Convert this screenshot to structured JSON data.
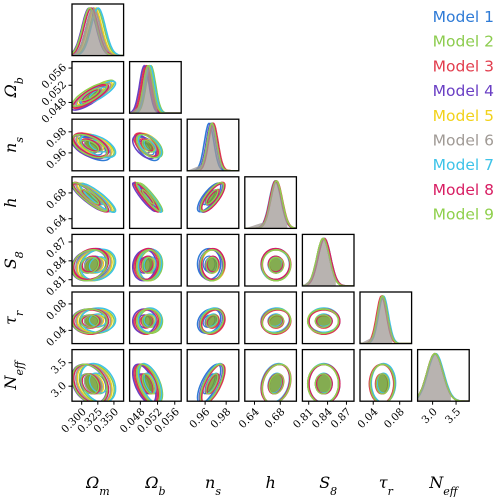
{
  "chart_data": {
    "type": "scatter",
    "subtype": "corner-plot",
    "parameters": [
      {
        "key": "omega_m",
        "symbol": "Ω",
        "sub": "m",
        "sup": "",
        "ticks": [
          "0.300",
          "0.325",
          "0.350"
        ],
        "tick_values": [
          0.3,
          0.325,
          0.35
        ],
        "range": [
          0.285,
          0.365
        ],
        "mean": 0.318,
        "sigma": 0.011
      },
      {
        "key": "omega_b",
        "symbol": "Ω",
        "sub": "b",
        "sup": "",
        "ticks": [
          "0.048",
          "0.052",
          "0.056"
        ],
        "tick_values": [
          0.048,
          0.052,
          0.056
        ],
        "range": [
          0.0455,
          0.0575
        ],
        "mean": 0.0498,
        "sigma": 0.0011
      },
      {
        "key": "n_s",
        "symbol": "n",
        "sub": "s",
        "sup": "",
        "ticks": [
          "0.96",
          "0.98"
        ],
        "tick_values": [
          0.96,
          0.98
        ],
        "range": [
          0.943,
          0.992
        ],
        "mean": 0.9665,
        "sigma": 0.0045
      },
      {
        "key": "h",
        "symbol": "h",
        "sub": "",
        "sup": "",
        "ticks": [
          "0.64",
          "0.68"
        ],
        "tick_values": [
          0.64,
          0.68
        ],
        "range": [
          0.625,
          0.705
        ],
        "mean": 0.673,
        "sigma": 0.009
      },
      {
        "key": "S_8",
        "symbol": "S",
        "sub": "8",
        "sup": "",
        "ticks": [
          "0.81",
          "0.84",
          "0.87"
        ],
        "tick_values": [
          0.81,
          0.84,
          0.87
        ],
        "range": [
          0.8,
          0.882
        ],
        "mean": 0.833,
        "sigma": 0.01
      },
      {
        "key": "tau_r",
        "symbol": "τ",
        "sub": "r",
        "sup": "",
        "ticks": [
          "0.04",
          "0.08"
        ],
        "tick_values": [
          0.04,
          0.08
        ],
        "range": [
          0.02,
          0.098
        ],
        "mean": 0.054,
        "sigma": 0.0075
      },
      {
        "key": "N_eff",
        "symbol": "N",
        "sub": "eff",
        "sup": "",
        "ticks": [
          "3.0",
          "3.5"
        ],
        "tick_values": [
          3.0,
          3.5
        ],
        "range": [
          2.68,
          3.78
        ],
        "mean": 3.05,
        "sigma": 0.17
      }
    ],
    "series": [
      {
        "name": "Model 1",
        "color": "#2f7bd6"
      },
      {
        "name": "Model 2",
        "color": "#8ccc4e"
      },
      {
        "name": "Model 3",
        "color": "#e23d4d"
      },
      {
        "name": "Model 4",
        "color": "#6a3fc4"
      },
      {
        "name": "Model 5",
        "color": "#f2d21b"
      },
      {
        "name": "Model 6",
        "color": "#a09a95"
      },
      {
        "name": "Model 7",
        "color": "#3ec3e8"
      },
      {
        "name": "Model 8",
        "color": "#d81e63"
      },
      {
        "name": "Model 9",
        "color": "#8fd04c"
      }
    ],
    "mean_shifts": [
      [
        0.0,
        0.0,
        -0.6,
        0.0,
        0.2,
        0.0,
        0.0
      ],
      [
        0.5,
        0.6,
        0.0,
        0.0,
        0.0,
        0.0,
        0.0
      ],
      [
        -0.4,
        -0.5,
        0.3,
        0.15,
        0.1,
        -0.2,
        0.0
      ],
      [
        -0.6,
        -0.8,
        -0.2,
        0.05,
        0.0,
        0.0,
        0.0
      ],
      [
        0.2,
        0.3,
        0.2,
        0.0,
        0.0,
        0.1,
        0.0
      ],
      [
        0.0,
        0.0,
        0.0,
        0.0,
        0.0,
        0.0,
        0.0
      ],
      [
        0.7,
        0.4,
        0.0,
        -0.1,
        0.1,
        0.2,
        0.1
      ],
      [
        -0.3,
        -0.2,
        0.2,
        -0.05,
        0.2,
        0.0,
        0.0
      ],
      [
        -0.5,
        0.0,
        0.0,
        0.1,
        0.0,
        0.0,
        0.0
      ]
    ],
    "correlations": [
      [
        "omega_b",
        "omega_m",
        0.82
      ],
      [
        "n_s",
        "omega_m",
        -0.55
      ],
      [
        "n_s",
        "omega_b",
        -0.55
      ],
      [
        "h",
        "omega_m",
        -0.88
      ],
      [
        "h",
        "omega_b",
        -0.93
      ],
      [
        "h",
        "n_s",
        0.78
      ],
      [
        "S_8",
        "omega_m",
        0.2
      ],
      [
        "S_8",
        "omega_b",
        0.1
      ],
      [
        "S_8",
        "n_s",
        0.0
      ],
      [
        "S_8",
        "h",
        0.0
      ],
      [
        "tau_r",
        "omega_m",
        0.0
      ],
      [
        "tau_r",
        "omega_b",
        0.0
      ],
      [
        "tau_r",
        "n_s",
        0.25
      ],
      [
        "tau_r",
        "h",
        0.1
      ],
      [
        "tau_r",
        "S_8",
        0.0
      ],
      [
        "N_eff",
        "omega_m",
        -0.3
      ],
      [
        "N_eff",
        "omega_b",
        -0.55
      ],
      [
        "N_eff",
        "n_s",
        0.7
      ],
      [
        "N_eff",
        "h",
        0.25
      ],
      [
        "N_eff",
        "S_8",
        0.0
      ],
      [
        "N_eff",
        "tau_r",
        0.0
      ]
    ],
    "legend_position": "top-right",
    "grid": false
  }
}
